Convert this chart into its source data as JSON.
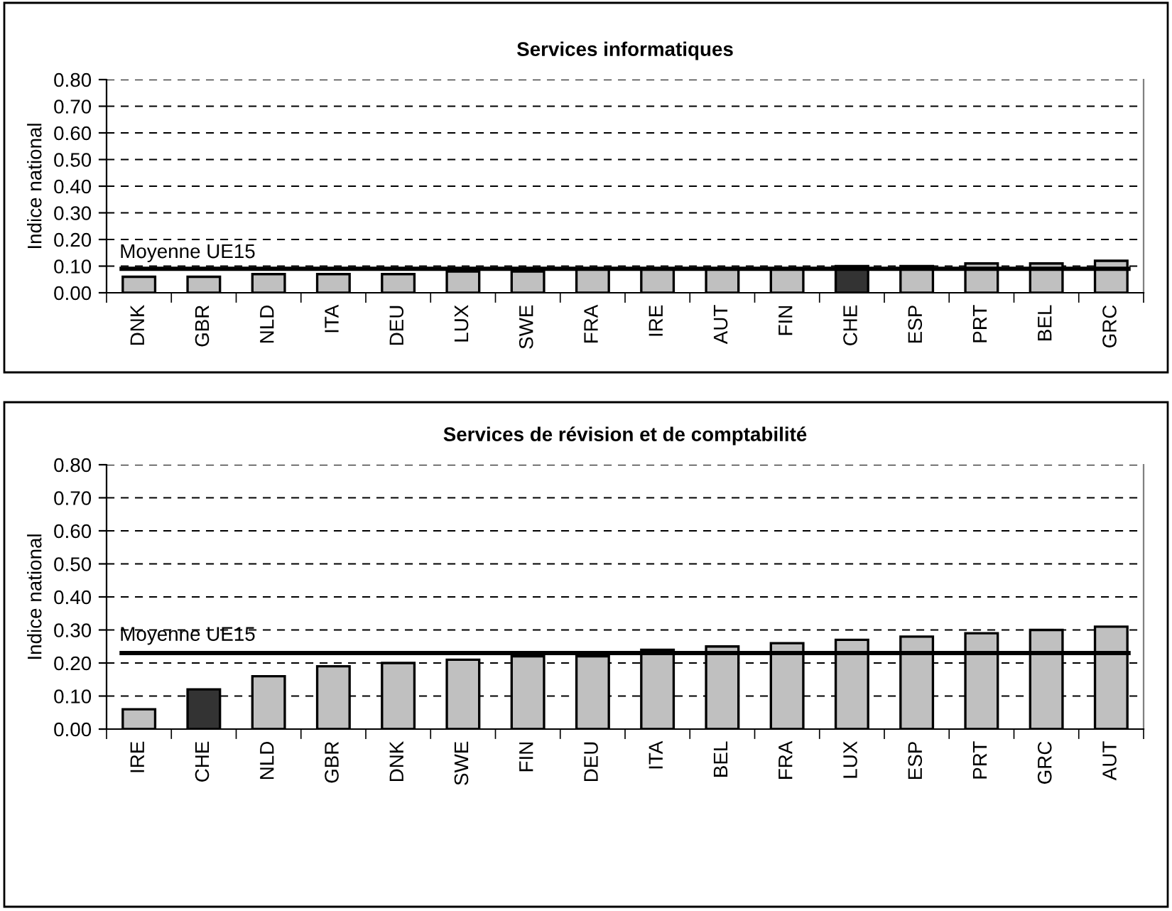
{
  "chart_data": [
    {
      "type": "bar",
      "title": "Services informatiques",
      "ylabel": "Indice national",
      "categories": [
        "DNK",
        "GBR",
        "NLD",
        "ITA",
        "DEU",
        "LUX",
        "SWE",
        "FRA",
        "IRE",
        "AUT",
        "FIN",
        "CHE",
        "ESP",
        "PRT",
        "BEL",
        "GRC"
      ],
      "values": [
        0.06,
        0.06,
        0.07,
        0.07,
        0.07,
        0.08,
        0.08,
        0.09,
        0.09,
        0.09,
        0.09,
        0.1,
        0.1,
        0.11,
        0.11,
        0.12
      ],
      "colors": [
        "#c0c0c0",
        "#c0c0c0",
        "#c0c0c0",
        "#c0c0c0",
        "#c0c0c0",
        "#c0c0c0",
        "#c0c0c0",
        "#c0c0c0",
        "#c0c0c0",
        "#c0c0c0",
        "#c0c0c0",
        "#333333",
        "#c0c0c0",
        "#c0c0c0",
        "#c0c0c0",
        "#c0c0c0"
      ],
      "ylim": [
        0,
        0.8
      ],
      "yticks": [
        {
          "value": 0,
          "label": "0.00"
        },
        {
          "value": 0.1,
          "label": "0.10"
        },
        {
          "value": 0.2,
          "label": "0.20"
        },
        {
          "value": 0.3,
          "label": "0.30"
        },
        {
          "value": 0.4,
          "label": "0.40"
        },
        {
          "value": 0.5,
          "label": "0.50"
        },
        {
          "value": 0.6,
          "label": "0.60"
        },
        {
          "value": 0.7,
          "label": "0.70"
        },
        {
          "value": 0.8,
          "label": "0.80"
        }
      ],
      "ref_lines": [
        {
          "axis": "y",
          "value": 0.09,
          "label": "Moyenne UE15",
          "color": "#000000"
        }
      ],
      "grid": "y",
      "legend": false
    },
    {
      "type": "bar",
      "title": "Services de révision et de comptabilité",
      "ylabel": "Indice national",
      "categories": [
        "IRE",
        "CHE",
        "NLD",
        "GBR",
        "DNK",
        "SWE",
        "FIN",
        "DEU",
        "ITA",
        "BEL",
        "FRA",
        "LUX",
        "ESP",
        "PRT",
        "GRC",
        "AUT"
      ],
      "values": [
        0.06,
        0.12,
        0.16,
        0.19,
        0.2,
        0.21,
        0.22,
        0.22,
        0.24,
        0.25,
        0.26,
        0.27,
        0.28,
        0.29,
        0.3,
        0.31
      ],
      "colors": [
        "#c0c0c0",
        "#333333",
        "#c0c0c0",
        "#c0c0c0",
        "#c0c0c0",
        "#c0c0c0",
        "#c0c0c0",
        "#c0c0c0",
        "#c0c0c0",
        "#c0c0c0",
        "#c0c0c0",
        "#c0c0c0",
        "#c0c0c0",
        "#c0c0c0",
        "#c0c0c0",
        "#c0c0c0"
      ],
      "ylim": [
        0,
        0.8
      ],
      "yticks": [
        {
          "value": 0,
          "label": "0.00"
        },
        {
          "value": 0.1,
          "label": "0.10"
        },
        {
          "value": 0.2,
          "label": "0.20"
        },
        {
          "value": 0.3,
          "label": "0.30"
        },
        {
          "value": 0.4,
          "label": "0.40"
        },
        {
          "value": 0.5,
          "label": "0.50"
        },
        {
          "value": 0.6,
          "label": "0.60"
        },
        {
          "value": 0.7,
          "label": "0.70"
        },
        {
          "value": 0.8,
          "label": "0.80"
        }
      ],
      "ref_lines": [
        {
          "axis": "y",
          "value": 0.23,
          "label": "Moyenne UE15",
          "color": "#000000"
        }
      ],
      "grid": "y",
      "legend": false
    }
  ]
}
